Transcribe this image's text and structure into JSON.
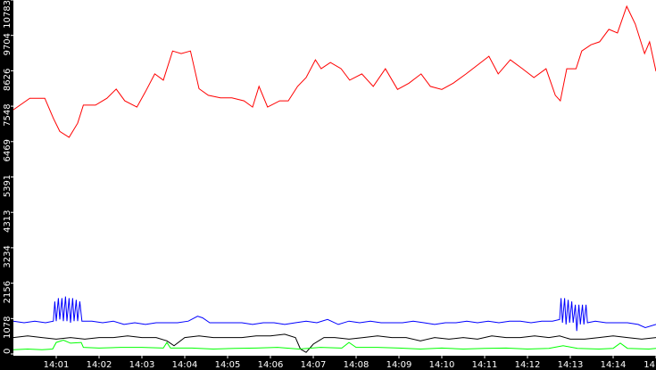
{
  "chart_data": {
    "type": "line",
    "title": "",
    "xlabel": "",
    "ylabel": "",
    "ylim": [
      0,
      10783
    ],
    "xlim": [
      "14:00:00",
      "14:15:00"
    ],
    "grid": false,
    "yticks": [
      "0",
      "1078",
      "2156",
      "3234",
      "4313",
      "5391",
      "6469",
      "7548",
      "8626",
      "9704",
      "10783"
    ],
    "xticks": [
      "14:01",
      "14:02",
      "14:03",
      "14:04",
      "14:05",
      "14:06",
      "14:07",
      "14:08",
      "14:09",
      "14:10",
      "14:11",
      "14:12",
      "14:13",
      "14:14",
      "14"
    ],
    "series": [
      {
        "color": "#ff0000",
        "points": [
          [
            "14:00:00",
            7440
          ],
          [
            "14:00:23",
            7790
          ],
          [
            "14:00:44",
            7790
          ],
          [
            "14:00:56",
            7180
          ],
          [
            "14:01:05",
            6780
          ],
          [
            "14:01:18",
            6600
          ],
          [
            "14:01:30",
            7030
          ],
          [
            "14:01:38",
            7580
          ],
          [
            "14:01:55",
            7580
          ],
          [
            "14:02:11",
            7790
          ],
          [
            "14:02:24",
            8070
          ],
          [
            "14:02:36",
            7710
          ],
          [
            "14:02:53",
            7520
          ],
          [
            "14:03:05",
            7990
          ],
          [
            "14:03:18",
            8530
          ],
          [
            "14:03:30",
            8340
          ],
          [
            "14:03:43",
            9230
          ],
          [
            "14:03:55",
            9150
          ],
          [
            "14:04:08",
            9230
          ],
          [
            "14:04:20",
            8080
          ],
          [
            "14:04:33",
            7880
          ],
          [
            "14:04:50",
            7800
          ],
          [
            "14:05:06",
            7800
          ],
          [
            "14:05:23",
            7710
          ],
          [
            "14:05:35",
            7520
          ],
          [
            "14:05:44",
            8150
          ],
          [
            "14:05:56",
            7520
          ],
          [
            "14:06:13",
            7710
          ],
          [
            "14:06:25",
            7710
          ],
          [
            "14:06:38",
            8150
          ],
          [
            "14:06:50",
            8420
          ],
          [
            "14:07:03",
            8960
          ],
          [
            "14:07:11",
            8690
          ],
          [
            "14:07:24",
            8880
          ],
          [
            "14:07:39",
            8690
          ],
          [
            "14:07:51",
            8340
          ],
          [
            "14:08:08",
            8530
          ],
          [
            "14:08:24",
            8150
          ],
          [
            "14:08:41",
            8690
          ],
          [
            "14:08:58",
            8060
          ],
          [
            "14:09:14",
            8250
          ],
          [
            "14:09:31",
            8530
          ],
          [
            "14:09:44",
            8150
          ],
          [
            "14:10:00",
            8060
          ],
          [
            "14:10:16",
            8250
          ],
          [
            "14:10:34",
            8530
          ],
          [
            "14:10:50",
            8800
          ],
          [
            "14:11:06",
            9070
          ],
          [
            "14:11:19",
            8530
          ],
          [
            "14:11:36",
            8960
          ],
          [
            "14:11:53",
            8690
          ],
          [
            "14:12:09",
            8420
          ],
          [
            "14:12:26",
            8690
          ],
          [
            "14:12:39",
            7880
          ],
          [
            "14:12:46",
            7710
          ],
          [
            "14:12:55",
            8690
          ],
          [
            "14:13:08",
            8690
          ],
          [
            "14:13:16",
            9230
          ],
          [
            "14:13:29",
            9420
          ],
          [
            "14:13:41",
            9510
          ],
          [
            "14:13:54",
            9890
          ],
          [
            "14:14:06",
            9780
          ],
          [
            "14:14:19",
            10590
          ],
          [
            "14:14:31",
            10050
          ],
          [
            "14:14:44",
            9150
          ],
          [
            "14:14:51",
            9510
          ],
          [
            "14:15:00",
            8610
          ]
        ]
      },
      {
        "color": "#0000ff",
        "points": [
          [
            "14:00:00",
            1000
          ],
          [
            "14:00:15",
            950
          ],
          [
            "14:00:30",
            1000
          ],
          [
            "14:00:45",
            950
          ],
          [
            "14:00:56",
            1000
          ],
          [
            "14:00:58",
            1600
          ],
          [
            "14:01:00",
            1000
          ],
          [
            "14:01:03",
            1700
          ],
          [
            "14:01:05",
            1050
          ],
          [
            "14:01:08",
            1700
          ],
          [
            "14:01:10",
            1000
          ],
          [
            "14:01:13",
            1750
          ],
          [
            "14:01:15",
            1000
          ],
          [
            "14:01:18",
            1700
          ],
          [
            "14:01:20",
            950
          ],
          [
            "14:01:23",
            1700
          ],
          [
            "14:01:25",
            1000
          ],
          [
            "14:01:28",
            1650
          ],
          [
            "14:01:30",
            1000
          ],
          [
            "14:01:33",
            1600
          ],
          [
            "14:01:36",
            1000
          ],
          [
            "14:01:50",
            1000
          ],
          [
            "14:02:05",
            950
          ],
          [
            "14:02:20",
            1000
          ],
          [
            "14:02:35",
            900
          ],
          [
            "14:02:50",
            950
          ],
          [
            "14:03:05",
            900
          ],
          [
            "14:03:20",
            950
          ],
          [
            "14:03:35",
            950
          ],
          [
            "14:03:50",
            950
          ],
          [
            "14:04:05",
            1000
          ],
          [
            "14:04:18",
            1150
          ],
          [
            "14:04:25",
            1100
          ],
          [
            "14:04:35",
            950
          ],
          [
            "14:04:50",
            950
          ],
          [
            "14:05:05",
            950
          ],
          [
            "14:05:20",
            950
          ],
          [
            "14:05:35",
            900
          ],
          [
            "14:05:50",
            950
          ],
          [
            "14:06:05",
            950
          ],
          [
            "14:06:20",
            900
          ],
          [
            "14:06:35",
            950
          ],
          [
            "14:06:50",
            1000
          ],
          [
            "14:07:05",
            950
          ],
          [
            "14:07:20",
            1050
          ],
          [
            "14:07:35",
            900
          ],
          [
            "14:07:50",
            1000
          ],
          [
            "14:08:05",
            950
          ],
          [
            "14:08:20",
            1000
          ],
          [
            "14:08:35",
            950
          ],
          [
            "14:08:50",
            950
          ],
          [
            "14:09:05",
            950
          ],
          [
            "14:09:20",
            1000
          ],
          [
            "14:09:35",
            950
          ],
          [
            "14:09:50",
            900
          ],
          [
            "14:10:05",
            950
          ],
          [
            "14:10:20",
            950
          ],
          [
            "14:10:35",
            1000
          ],
          [
            "14:10:50",
            950
          ],
          [
            "14:11:05",
            1000
          ],
          [
            "14:11:20",
            950
          ],
          [
            "14:11:35",
            1000
          ],
          [
            "14:11:50",
            1000
          ],
          [
            "14:12:05",
            950
          ],
          [
            "14:12:20",
            1000
          ],
          [
            "14:12:35",
            1000
          ],
          [
            "14:12:45",
            1050
          ],
          [
            "14:12:47",
            1700
          ],
          [
            "14:12:49",
            950
          ],
          [
            "14:12:52",
            1700
          ],
          [
            "14:12:54",
            900
          ],
          [
            "14:12:57",
            1650
          ],
          [
            "14:12:59",
            950
          ],
          [
            "14:13:02",
            1600
          ],
          [
            "14:13:04",
            950
          ],
          [
            "14:13:07",
            1500
          ],
          [
            "14:13:09",
            700
          ],
          [
            "14:13:12",
            1500
          ],
          [
            "14:13:14",
            900
          ],
          [
            "14:13:17",
            1500
          ],
          [
            "14:13:19",
            900
          ],
          [
            "14:13:22",
            1500
          ],
          [
            "14:13:24",
            950
          ],
          [
            "14:13:35",
            1000
          ],
          [
            "14:13:50",
            950
          ],
          [
            "14:14:05",
            950
          ],
          [
            "14:14:20",
            950
          ],
          [
            "14:14:35",
            900
          ],
          [
            "14:14:45",
            800
          ],
          [
            "14:15:00",
            900
          ]
        ]
      },
      {
        "color": "#000000",
        "points": [
          [
            "14:00:00",
            500
          ],
          [
            "14:00:20",
            550
          ],
          [
            "14:00:40",
            500
          ],
          [
            "14:01:00",
            450
          ],
          [
            "14:01:20",
            500
          ],
          [
            "14:01:40",
            450
          ],
          [
            "14:02:00",
            500
          ],
          [
            "14:02:20",
            500
          ],
          [
            "14:02:40",
            550
          ],
          [
            "14:03:00",
            500
          ],
          [
            "14:03:20",
            500
          ],
          [
            "14:03:35",
            400
          ],
          [
            "14:03:45",
            250
          ],
          [
            "14:04:00",
            500
          ],
          [
            "14:04:20",
            550
          ],
          [
            "14:04:40",
            500
          ],
          [
            "14:05:00",
            500
          ],
          [
            "14:05:20",
            500
          ],
          [
            "14:05:40",
            550
          ],
          [
            "14:06:00",
            550
          ],
          [
            "14:06:20",
            600
          ],
          [
            "14:06:35",
            500
          ],
          [
            "14:06:42",
            150
          ],
          [
            "14:06:50",
            50
          ],
          [
            "14:07:00",
            300
          ],
          [
            "14:07:15",
            500
          ],
          [
            "14:07:30",
            500
          ],
          [
            "14:07:50",
            450
          ],
          [
            "14:08:10",
            500
          ],
          [
            "14:08:30",
            550
          ],
          [
            "14:08:50",
            500
          ],
          [
            "14:09:10",
            500
          ],
          [
            "14:09:30",
            400
          ],
          [
            "14:09:50",
            500
          ],
          [
            "14:10:10",
            450
          ],
          [
            "14:10:30",
            500
          ],
          [
            "14:10:50",
            450
          ],
          [
            "14:11:10",
            550
          ],
          [
            "14:11:30",
            500
          ],
          [
            "14:11:50",
            500
          ],
          [
            "14:12:10",
            550
          ],
          [
            "14:12:30",
            500
          ],
          [
            "14:12:45",
            550
          ],
          [
            "14:13:00",
            450
          ],
          [
            "14:13:20",
            450
          ],
          [
            "14:13:40",
            500
          ],
          [
            "14:14:00",
            550
          ],
          [
            "14:14:20",
            500
          ],
          [
            "14:14:40",
            450
          ],
          [
            "14:15:00",
            500
          ]
        ]
      },
      {
        "color": "#00ff00",
        "points": [
          [
            "14:00:00",
            130
          ],
          [
            "14:00:20",
            150
          ],
          [
            "14:00:40",
            130
          ],
          [
            "14:00:55",
            150
          ],
          [
            "14:01:00",
            350
          ],
          [
            "14:01:10",
            420
          ],
          [
            "14:01:20",
            330
          ],
          [
            "14:01:35",
            350
          ],
          [
            "14:01:38",
            200
          ],
          [
            "14:02:00",
            180
          ],
          [
            "14:02:30",
            200
          ],
          [
            "14:03:00",
            200
          ],
          [
            "14:03:30",
            180
          ],
          [
            "14:03:35",
            350
          ],
          [
            "14:03:40",
            180
          ],
          [
            "14:04:10",
            180
          ],
          [
            "14:04:40",
            150
          ],
          [
            "14:05:10",
            170
          ],
          [
            "14:05:40",
            180
          ],
          [
            "14:06:10",
            200
          ],
          [
            "14:06:40",
            150
          ],
          [
            "14:07:10",
            200
          ],
          [
            "14:07:40",
            180
          ],
          [
            "14:07:50",
            350
          ],
          [
            "14:08:00",
            200
          ],
          [
            "14:08:30",
            200
          ],
          [
            "14:09:00",
            180
          ],
          [
            "14:09:30",
            150
          ],
          [
            "14:10:00",
            180
          ],
          [
            "14:10:30",
            150
          ],
          [
            "14:11:00",
            170
          ],
          [
            "14:11:30",
            180
          ],
          [
            "14:12:00",
            150
          ],
          [
            "14:12:30",
            170
          ],
          [
            "14:12:50",
            250
          ],
          [
            "14:13:10",
            170
          ],
          [
            "14:13:40",
            150
          ],
          [
            "14:14:00",
            170
          ],
          [
            "14:14:10",
            330
          ],
          [
            "14:14:20",
            170
          ],
          [
            "14:14:50",
            150
          ],
          [
            "14:15:00",
            170
          ]
        ]
      }
    ]
  }
}
